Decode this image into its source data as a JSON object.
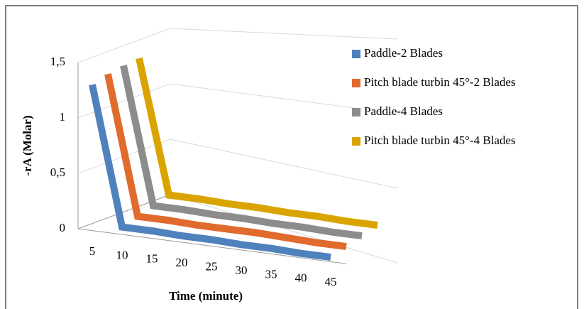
{
  "chart_data": {
    "type": "line",
    "x_label": "Time (minute)",
    "y_label": "-rA  (Molar)",
    "categories": [
      5,
      10,
      15,
      20,
      25,
      30,
      35,
      40,
      45
    ],
    "series": [
      {
        "name": "Paddle-2 Blades",
        "color": "#4f81bd",
        "values": [
          1.3,
          0.05,
          0.05,
          0.04,
          0.04,
          0.03,
          0.03,
          0.02,
          0.02
        ]
      },
      {
        "name": "Pitch blade turbin 45°-2 Blades",
        "color": "#e06b2c",
        "values": [
          1.3,
          0.05,
          0.05,
          0.04,
          0.04,
          0.04,
          0.03,
          0.02,
          0.02
        ]
      },
      {
        "name": "Paddle-4 Blades",
        "color": "#8c8c8c",
        "values": [
          1.28,
          0.05,
          0.05,
          0.04,
          0.04,
          0.03,
          0.03,
          0.02,
          0.02
        ]
      },
      {
        "name": "Pitch blade turbin 45°-4 Blades",
        "color": "#d9a400",
        "values": [
          1.25,
          0.05,
          0.05,
          0.04,
          0.04,
          0.03,
          0.03,
          0.02,
          0.02
        ]
      }
    ],
    "ylim": [
      0,
      1.5
    ],
    "yticks": [
      0,
      {
        "value": 0.5,
        "label": "0,5"
      },
      1,
      {
        "value": 1.5,
        "label": "1,5"
      }
    ],
    "grid": true,
    "legend": "right"
  }
}
